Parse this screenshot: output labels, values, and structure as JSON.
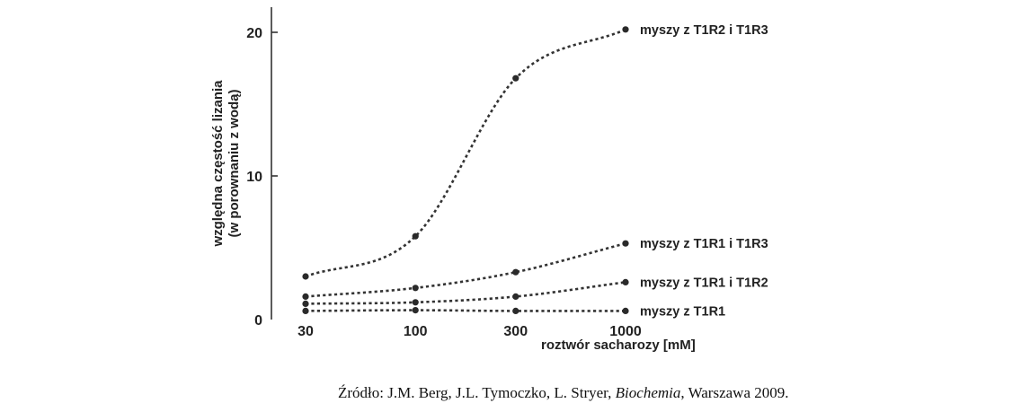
{
  "chart_data": {
    "type": "line",
    "xscale": "log",
    "x": [
      30,
      100,
      300,
      1000
    ],
    "xticks": [
      "30",
      "100",
      "300",
      "1000"
    ],
    "yticks": [
      "0",
      "10",
      "20"
    ],
    "ylim": [
      0,
      22
    ],
    "xlabel": "roztwór sacharozy [mM]",
    "ylabel_line1": "względna częstość lizania",
    "ylabel_line2": "(w porownaniu z wodą)",
    "grid": false,
    "line_style": "dotted",
    "series": [
      {
        "name": "myszy z T1R2 i T1R3",
        "values": [
          3.0,
          5.8,
          16.8,
          20.2
        ]
      },
      {
        "name": "myszy z T1R1 i T1R3",
        "values": [
          1.6,
          2.2,
          3.3,
          5.3
        ]
      },
      {
        "name": "myszy z T1R1 i T1R2",
        "values": [
          1.1,
          1.2,
          1.6,
          2.6
        ]
      },
      {
        "name": "myszy z T1R1",
        "values": [
          0.6,
          0.65,
          0.6,
          0.6
        ]
      }
    ]
  },
  "source": {
    "prefix": "Źródło: J.M. Berg, J.L. Tymoczko, L. Stryer, ",
    "title": "Biochemia",
    "suffix": ", Warszawa 2009."
  }
}
